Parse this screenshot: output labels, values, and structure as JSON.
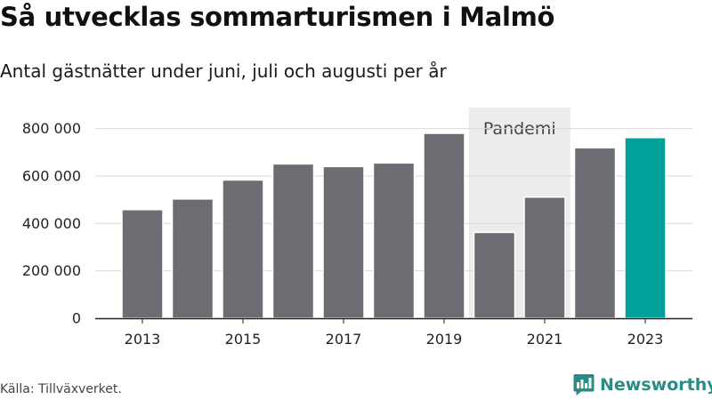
{
  "header": {
    "title": "Så utvecklas sommarturismen i Malmö",
    "subtitle": "Antal gästnätter under juni, juli och augusti per år"
  },
  "footer": {
    "source": "Källa: Tillväxverket.",
    "brand": "Newsworthy",
    "brand_icon": "newsworthy-logo-icon"
  },
  "colors": {
    "bar": "#6d6c72",
    "highlight": "#00a199",
    "shade": "#ececec",
    "grid": "#d9d9d9",
    "brand": "#2a8c85"
  },
  "chart_data": {
    "type": "bar",
    "title": "Så utvecklas sommarturismen i Malmö",
    "subtitle": "Antal gästnätter under juni, juli och augusti per år",
    "categories": [
      "2013",
      "2014",
      "2015",
      "2016",
      "2017",
      "2018",
      "2019",
      "2020",
      "2021",
      "2022",
      "2023"
    ],
    "values": [
      458000,
      503000,
      583000,
      651000,
      640000,
      655000,
      780000,
      362000,
      511000,
      719000,
      762000
    ],
    "highlight_category": "2023",
    "x_tick_labels": [
      "2013",
      "2015",
      "2017",
      "2019",
      "2021",
      "2023"
    ],
    "y_ticks": [
      0,
      200000,
      400000,
      600000,
      800000
    ],
    "y_tick_labels": [
      "0",
      "200 000",
      "400 000",
      "600 000",
      "800 000"
    ],
    "ylim": [
      0,
      900000
    ],
    "grid": true,
    "annotation": {
      "label": "Pandemi",
      "from": "2020",
      "to": "2021"
    }
  }
}
